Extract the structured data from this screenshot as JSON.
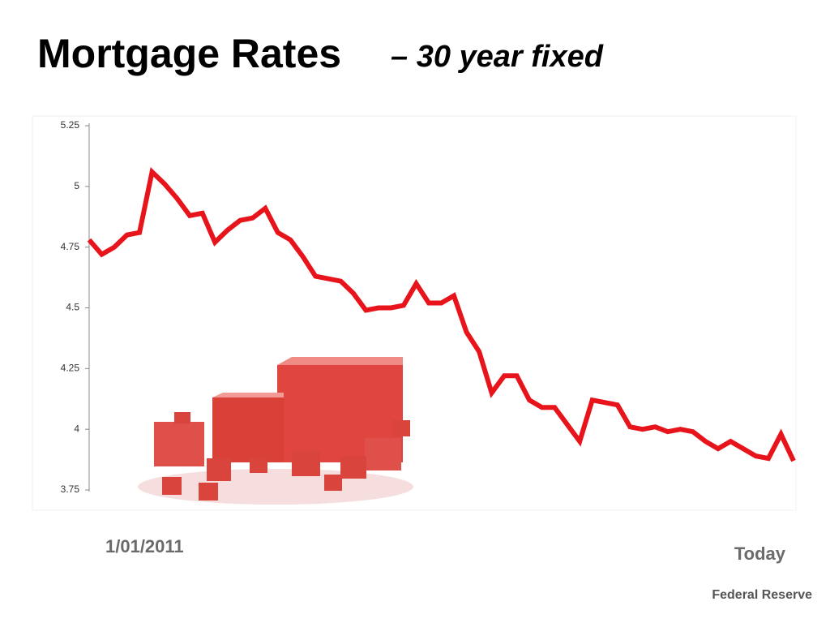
{
  "chart_data": {
    "type": "line",
    "title": "Mortgage Rates",
    "subtitle": "– 30 year fixed",
    "source": "Federal Reserve",
    "categories": [
      "1/01/2011",
      null,
      null,
      null,
      null,
      null,
      null,
      null,
      null,
      null,
      null,
      null,
      null,
      null,
      null,
      null,
      null,
      null,
      null,
      null,
      null,
      null,
      null,
      null,
      null,
      null,
      null,
      null,
      null,
      null,
      null,
      null,
      null,
      null,
      null,
      null,
      null,
      null,
      null,
      null,
      null,
      null,
      null,
      null,
      null,
      null,
      null,
      null,
      null,
      null,
      null,
      null,
      null,
      null,
      null,
      null,
      "Today"
    ],
    "series": [
      {
        "name": "30 year fixed",
        "color": "#e8141b",
        "values": [
          4.78,
          4.72,
          4.75,
          4.8,
          4.81,
          5.06,
          5.01,
          4.95,
          4.88,
          4.89,
          4.77,
          4.82,
          4.86,
          4.87,
          4.91,
          4.81,
          4.78,
          4.71,
          4.63,
          4.62,
          4.61,
          4.56,
          4.49,
          4.5,
          4.5,
          4.51,
          4.6,
          4.52,
          4.52,
          4.55,
          4.4,
          4.32,
          4.15,
          4.22,
          4.22,
          4.12,
          4.09,
          4.09,
          4.02,
          3.95,
          4.12,
          4.11,
          4.1,
          4.01,
          4.0,
          4.01,
          3.99,
          4.0,
          3.99,
          3.95,
          3.92,
          3.95,
          3.92,
          3.89,
          3.88,
          3.98,
          3.87
        ]
      }
    ],
    "ylim": [
      3.75,
      5.25
    ],
    "yticks": [
      3.75,
      4,
      4.25,
      4.5,
      4.75,
      5,
      5.25
    ],
    "grid": false
  }
}
